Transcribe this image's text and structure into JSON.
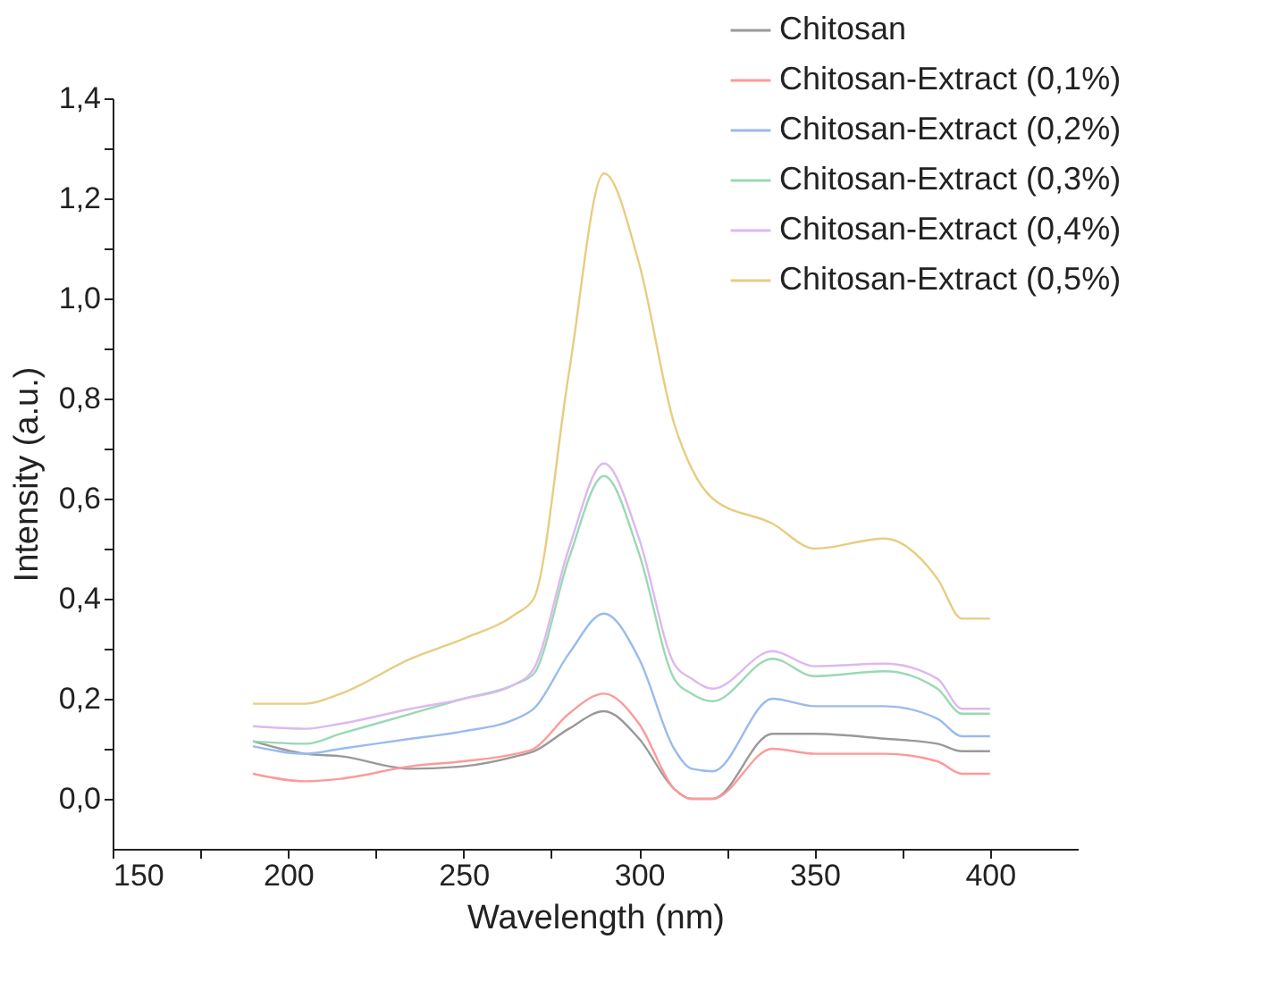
{
  "chart_data": {
    "type": "line",
    "xlabel": "Wavelength (nm)",
    "ylabel": "Intensity (a.u.)",
    "x": [
      190,
      205,
      215,
      235,
      250,
      265,
      270,
      280,
      290,
      300,
      310,
      315,
      321,
      338,
      350,
      370,
      385,
      392,
      400
    ],
    "series": [
      {
        "name": "Chitosan",
        "color": "#999999",
        "values": [
          0.115,
          0.09,
          0.085,
          0.06,
          0.065,
          0.085,
          0.095,
          0.14,
          0.175,
          0.12,
          0.02,
          0.0,
          0.0,
          0.13,
          0.13,
          0.12,
          0.11,
          0.095,
          0.095
        ]
      },
      {
        "name": "Chitosan-Extract (0,1%)",
        "color": "#ff9999",
        "values": [
          0.05,
          0.035,
          0.04,
          0.065,
          0.075,
          0.09,
          0.1,
          0.17,
          0.21,
          0.15,
          0.02,
          0.0,
          0.0,
          0.1,
          0.09,
          0.09,
          0.075,
          0.05,
          0.05
        ]
      },
      {
        "name": "Chitosan-Extract (0,2%)",
        "color": "#99bbee",
        "values": [
          0.105,
          0.09,
          0.1,
          0.12,
          0.135,
          0.16,
          0.18,
          0.29,
          0.37,
          0.28,
          0.1,
          0.06,
          0.055,
          0.2,
          0.185,
          0.185,
          0.16,
          0.125,
          0.125
        ]
      },
      {
        "name": "Chitosan-Extract (0,3%)",
        "color": "#99d9b3",
        "values": [
          0.115,
          0.11,
          0.13,
          0.17,
          0.2,
          0.23,
          0.25,
          0.48,
          0.645,
          0.49,
          0.24,
          0.21,
          0.195,
          0.28,
          0.245,
          0.255,
          0.22,
          0.17,
          0.17
        ]
      },
      {
        "name": "Chitosan-Extract (0,4%)",
        "color": "#ddb8f0",
        "values": [
          0.145,
          0.14,
          0.15,
          0.18,
          0.2,
          0.23,
          0.26,
          0.5,
          0.67,
          0.52,
          0.27,
          0.24,
          0.22,
          0.295,
          0.265,
          0.27,
          0.24,
          0.18,
          0.18
        ]
      },
      {
        "name": "Chitosan-Extract (0,5%)",
        "color": "#e8cc80",
        "values": [
          0.19,
          0.19,
          0.21,
          0.28,
          0.32,
          0.37,
          0.4,
          0.85,
          1.25,
          1.07,
          0.75,
          0.66,
          0.6,
          0.55,
          0.5,
          0.52,
          0.44,
          0.36,
          0.36
        ]
      }
    ],
    "xlim": [
      150,
      425
    ],
    "xticks": [
      150,
      {
        "value": 175,
        "label": null
      },
      200,
      {
        "value": 225,
        "label": null
      },
      250,
      {
        "value": 275,
        "label": null
      },
      300,
      {
        "value": 325,
        "label": null
      },
      350,
      {
        "value": 375,
        "label": null
      },
      400
    ],
    "ylim": [
      -0.1,
      1.4
    ],
    "yticks": [
      {
        "value": 0,
        "label": "0,0"
      },
      {
        "value": 0.1,
        "label": null
      },
      {
        "value": 0.2,
        "label": "0,2"
      },
      {
        "value": 0.3,
        "label": null
      },
      {
        "value": 0.4,
        "label": "0,4"
      },
      {
        "value": 0.5,
        "label": null
      },
      {
        "value": 0.6,
        "label": "0,6"
      },
      {
        "value": 0.7,
        "label": null
      },
      {
        "value": 0.8,
        "label": "0,8"
      },
      {
        "value": 0.9,
        "label": null
      },
      {
        "value": 1.0,
        "label": "1,0"
      },
      {
        "value": 1.1,
        "label": null
      },
      {
        "value": 1.2,
        "label": "1,2"
      },
      {
        "value": 1.3,
        "label": null
      },
      {
        "value": 1.4,
        "label": "1,4"
      }
    ],
    "grid": false,
    "legend": "top right",
    "marker": "none",
    "line_style": "solid"
  }
}
